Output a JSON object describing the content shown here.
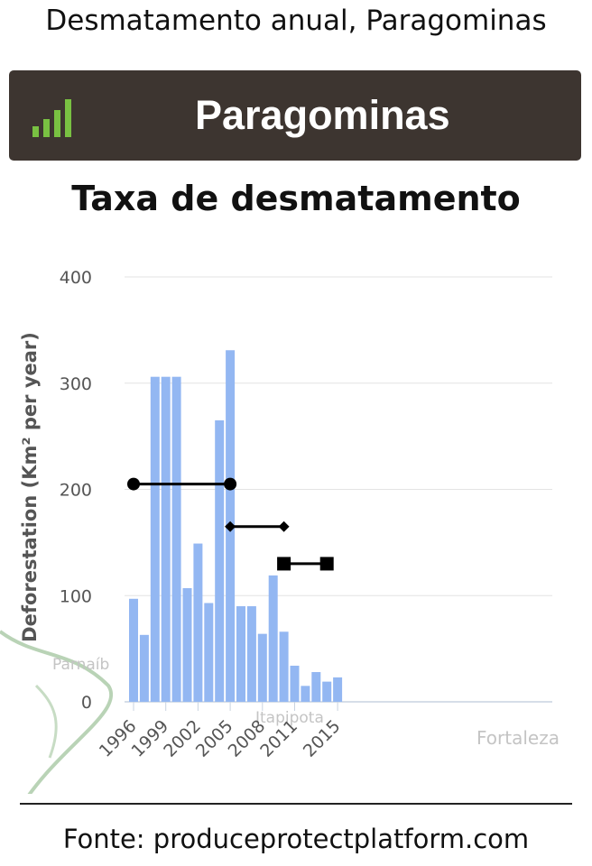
{
  "header": {
    "title": "Desmatamento anual, Paragominas"
  },
  "banner": {
    "title": "Paragominas",
    "icon": "signal-bars-icon",
    "background_color": "#3d3530",
    "icon_color": "#79c142"
  },
  "map_labels": [
    "Parnaíb",
    "Itapipota",
    "Fortaleza"
  ],
  "footer": {
    "source": "Fonte: produceprotectplatform.com"
  },
  "chart_data": {
    "type": "bar",
    "title": "Taxa de desmatamento",
    "ylabel": "Deforestation (Km² per year)",
    "xlabel": "",
    "ylim": [
      0,
      400
    ],
    "yticks": [
      0,
      100,
      200,
      300,
      400
    ],
    "xticks": [
      "1996",
      "1999",
      "2002",
      "2005",
      "2008",
      "2011",
      "2015"
    ],
    "grid": true,
    "bar_color": "#93b7f2",
    "series": [
      {
        "x": [
          1996,
          1997,
          1998,
          1999,
          2000,
          2001,
          2002,
          2003,
          2004,
          2005,
          2006,
          2007,
          2008,
          2009,
          2010,
          2011,
          2012,
          2013,
          2014,
          2015
        ],
        "values": [
          97,
          63,
          306,
          306,
          306,
          107,
          149,
          93,
          265,
          331,
          90,
          90,
          64,
          119,
          66,
          34,
          15,
          28,
          19,
          23
        ]
      }
    ],
    "reference_lines": [
      {
        "start": 1996,
        "end": 2005,
        "value": 205,
        "marker": "circle",
        "color": "#000000"
      },
      {
        "start": 2005,
        "end": 2010,
        "value": 165,
        "marker": "diamond",
        "color": "#000000"
      },
      {
        "start": 2010,
        "end": 2014,
        "value": 130,
        "marker": "square",
        "color": "#000000"
      }
    ]
  }
}
